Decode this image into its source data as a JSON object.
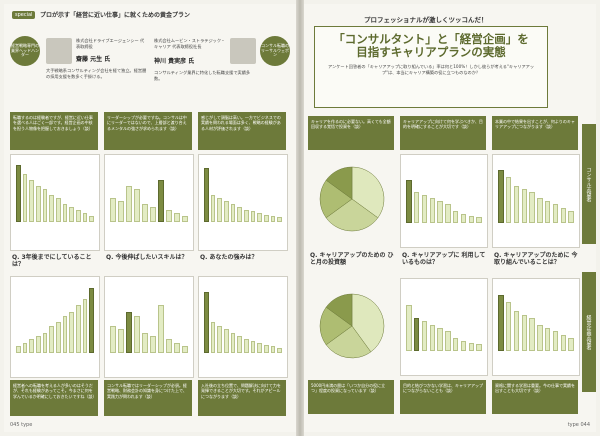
{
  "left_page": {
    "tag": "special",
    "header": "プロが示す「経営に近い仕事」に就くための黄金プラン",
    "person1": {
      "badge": "経営戦略専門の業界ヘッドハンター",
      "company": "株式会社ドライブエージェンシー 代表取締役",
      "name": "齋藤 元生 氏",
      "desc": "大手戦略系コンサルティング会社を経て独立。経営層の採用支援を数多く手掛ける。"
    },
    "person2": {
      "badge": "コンサル転職のリーサルウェポン",
      "company": "株式会社ムービン・ストラテジック・キャリア 代表取締役社長",
      "name": "神川 貴実彦 氏",
      "desc": "コンサルティング業界に特化した転職支援で実績多数。"
    },
    "note1": "転職するのは経験者ですが、経営に近い仕事を選べる人はごく一部です。経営企画の中核を担う人物像を把握しておきましょう（談）",
    "note2": "リーダーシップが必要ですね。コンサルは中にリーダーではないので、上層部と渡り合えるメンタルの強さが求められます（談）",
    "note3": "感じがして頭脳は高い。一方でビジネスでの実績を問われる場面は多く、戦略の経験がある人材が評価されます（談）",
    "q1": {
      "label": "Q. 3年後までにしていることは？"
    },
    "q2": {
      "label": "Q. 今後伸ばしたいスキルは？"
    },
    "q3": {
      "label": "Q. あなたの強みは？"
    },
    "bottom1": "経営者への転職を考える人が多いのはそうだが、それも経験があってこそ。今まさに何を学んでいるか明確にしておきたいですね（談）",
    "bottom2": "コンサル転職ではリーダーシップが必須。経営戦略、財務会計の知識を身につけた上で、実践力が問われます（談）",
    "bottom3": "入社後の立ち位置で、問題解決に向けて力を発揮できることが大切です。それがアピールにつながります（談）",
    "page_no": "045",
    "magazine": "type"
  },
  "right_page": {
    "subtitle": "プロフェッショナルが激しくツッコんだ！",
    "title_line1": "「コンサルタント」と「経営企画」を",
    "title_line2": "目指すキャリアプランの実態",
    "lead": "アンケート回答者の「キャリアアップに取り組んでいる」率は何と100%！しかし彼らが考える\"キャリアアップ\"は、本当にキャリア構築の役に立つものなのか？",
    "side_tab1": "コンサル志望者",
    "side_tab2": "経営企画志望者",
    "q4": {
      "label": "Q. キャリアアップのための ひと月の投資額"
    },
    "q5": {
      "label": "Q. キャリアアップに 利用しているものは？"
    },
    "q6": {
      "label": "Q. キャリアアップのために 今取り組んでいることは？"
    },
    "pie_top": [
      "3000円未満",
      "3000〜5000円",
      "5000〜1万円",
      "1万円以上"
    ],
    "pie_bottom": [
      "3000円未満",
      "3000〜5000円",
      "5000〜1万円",
      "1万円以上"
    ],
    "page_no": "044",
    "magazine": "type"
  },
  "chart_data": [
    {
      "type": "bar",
      "title": "Q. 3年後までにしていることは？",
      "values": [
        95,
        80,
        70,
        60,
        55,
        45,
        40,
        30,
        25,
        20,
        15,
        10
      ]
    },
    {
      "type": "bar",
      "title": "Q. 今後伸ばしたいスキルは？",
      "values": [
        40,
        35,
        60,
        55,
        30,
        25,
        70,
        20,
        15,
        10
      ]
    },
    {
      "type": "bar",
      "title": "Q. あなたの強みは？",
      "values": [
        90,
        45,
        40,
        35,
        30,
        25,
        20,
        18,
        15,
        12,
        10,
        8
      ]
    },
    {
      "type": "pie",
      "title": "Q. キャリアアップのための ひと月の投資額",
      "values": [
        35,
        30,
        20,
        15
      ]
    },
    {
      "type": "bar",
      "title": "Q. キャリアアップに 利用しているものは？",
      "values": [
        70,
        50,
        45,
        40,
        35,
        30,
        20,
        15,
        12,
        10
      ]
    },
    {
      "type": "bar",
      "title": "Q. キャリアアップのために 今取り組んでいることは？",
      "values": [
        85,
        75,
        60,
        55,
        50,
        40,
        35,
        30,
        25,
        20
      ]
    }
  ]
}
